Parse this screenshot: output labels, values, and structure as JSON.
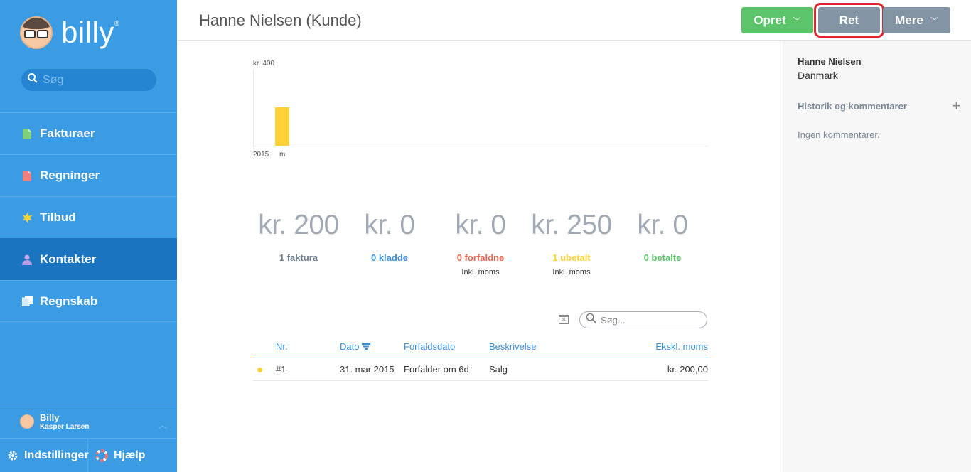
{
  "sidebar": {
    "logo_text": "billy",
    "logo_reg": "®",
    "search_placeholder": "Søg",
    "nav": [
      {
        "label": "Fakturaer",
        "icon": "invoice-icon",
        "color": "#7ed07a"
      },
      {
        "label": "Regninger",
        "icon": "bill-icon",
        "color": "#f07f7f"
      },
      {
        "label": "Tilbud",
        "icon": "star-icon",
        "color": "#ffd139"
      },
      {
        "label": "Kontakter",
        "icon": "person-icon",
        "color": "#b79ae8",
        "active": true
      },
      {
        "label": "Regnskab",
        "icon": "ledger-icon",
        "color": "#ffffff"
      }
    ],
    "user": {
      "name": "Billy",
      "sub": "Kasper Larsen"
    },
    "settings_label": "Indstillinger",
    "help_label": "Hjælp"
  },
  "header": {
    "title": "Hanne Nielsen (Kunde)",
    "opret_label": "Opret",
    "ret_label": "Ret",
    "mere_label": "Mere"
  },
  "chart_data": {
    "type": "bar",
    "ytick_label": "kr. 400",
    "ylim": [
      0,
      400
    ],
    "categories": [
      "m"
    ],
    "values": [
      200
    ],
    "year_label": "2015",
    "bar_color": "#ffd139"
  },
  "stats": [
    {
      "value": "kr. 200",
      "label": "1 faktura",
      "sub": "",
      "color": "#6f8090"
    },
    {
      "value": "kr. 0",
      "label": "0 kladde",
      "sub": "",
      "color": "#3b8fd3"
    },
    {
      "value": "kr. 0",
      "label": "0 forfaldne",
      "sub": "Inkl. moms",
      "color": "#e8654f"
    },
    {
      "value": "kr. 250",
      "label": "1 ubetalt",
      "sub": "Inkl. moms",
      "color": "#ffd139"
    },
    {
      "value": "kr. 0",
      "label": "0 betalte",
      "sub": "",
      "color": "#5cc46a"
    }
  ],
  "table": {
    "search_placeholder": "Søg...",
    "calendar_day": "31",
    "headers": {
      "nr": "Nr.",
      "dato": "Dato",
      "forfald": "Forfaldsdato",
      "beskr": "Beskrivelse",
      "eks": "Ekskl. moms"
    },
    "rows": [
      {
        "nr": "#1",
        "dato": "31. mar 2015",
        "forfald": "Forfalder om 6d",
        "beskr": "Salg",
        "eks": "kr. 200,00"
      }
    ]
  },
  "rightpanel": {
    "name": "Hanne Nielsen",
    "country": "Danmark",
    "history_label": "Historik og kommentarer",
    "no_comments": "Ingen kommentarer."
  }
}
